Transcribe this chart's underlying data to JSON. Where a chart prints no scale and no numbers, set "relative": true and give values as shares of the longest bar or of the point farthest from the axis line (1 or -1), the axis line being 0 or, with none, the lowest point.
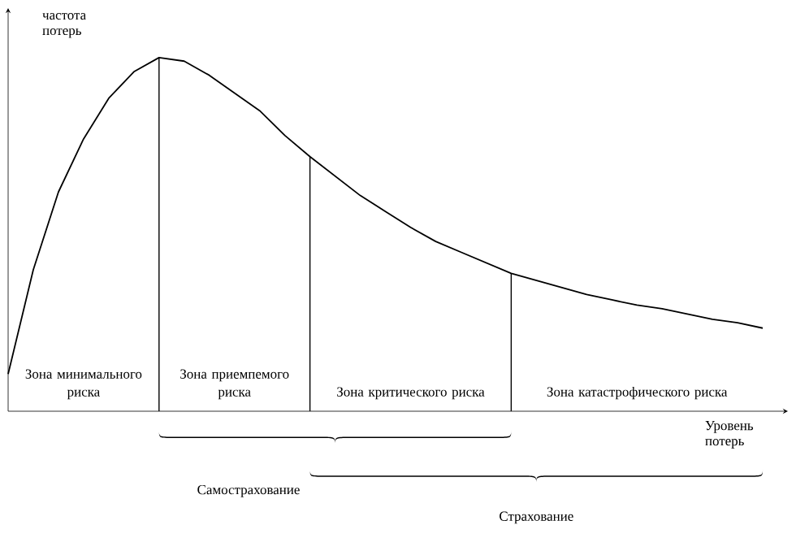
{
  "chart_data": {
    "type": "line",
    "relative": true,
    "xlabel": "Уровень потерь",
    "ylabel": "частота потерь",
    "categories": [
      null,
      null,
      null,
      null,
      null,
      null,
      null,
      null,
      null,
      null,
      null,
      null,
      null,
      null,
      null,
      null,
      null,
      null,
      null,
      null,
      null,
      null,
      null,
      null,
      null,
      null,
      null,
      null,
      null,
      null,
      null
    ],
    "series": [
      {
        "color": "#000000",
        "values": [
          0.105,
          0.4,
          0.62,
          0.77,
          0.885,
          0.96,
          1.0,
          0.99,
          0.95,
          0.9,
          0.85,
          0.78,
          0.72,
          0.665,
          0.61,
          0.565,
          0.52,
          0.48,
          0.45,
          0.42,
          0.39,
          0.37,
          0.35,
          0.33,
          0.315,
          0.3,
          0.29,
          0.275,
          0.26,
          0.25,
          0.235
        ]
      }
    ],
    "annotations": [
      "Зона минимального риска",
      "Зона приемпемого риска",
      "Зона критического риска",
      "Зона катастрофического риска",
      "Самострахование",
      "Страхование"
    ]
  }
}
